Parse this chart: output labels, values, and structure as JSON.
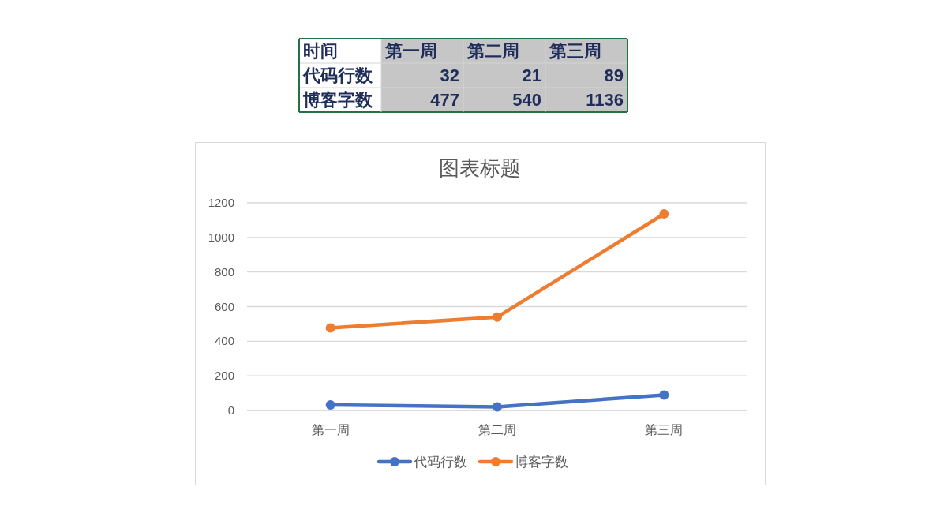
{
  "chart_data": [
    {
      "type": "other",
      "annotations": [
        "时间",
        "第一周",
        "第二周",
        "第三周",
        "代码行数",
        "32",
        "21",
        "89",
        "博客字数",
        "477",
        "540",
        "1136"
      ]
    },
    {
      "type": "line",
      "title": "图表标题",
      "categories": [
        "第一周",
        "第二周",
        "第三周"
      ],
      "series": [
        {
          "name": "代码行数",
          "color": "#4472c4",
          "values": [
            32,
            21,
            89
          ]
        },
        {
          "name": "博客字数",
          "color": "#ed7d31",
          "values": [
            477,
            540,
            1136
          ]
        }
      ],
      "ylim": [
        0,
        1200
      ],
      "yticks": [
        0,
        200,
        400,
        600,
        800,
        1000,
        1200
      ],
      "grid": "y",
      "legend": "bottom",
      "marker": "circle",
      "line_style": "solid"
    }
  ]
}
